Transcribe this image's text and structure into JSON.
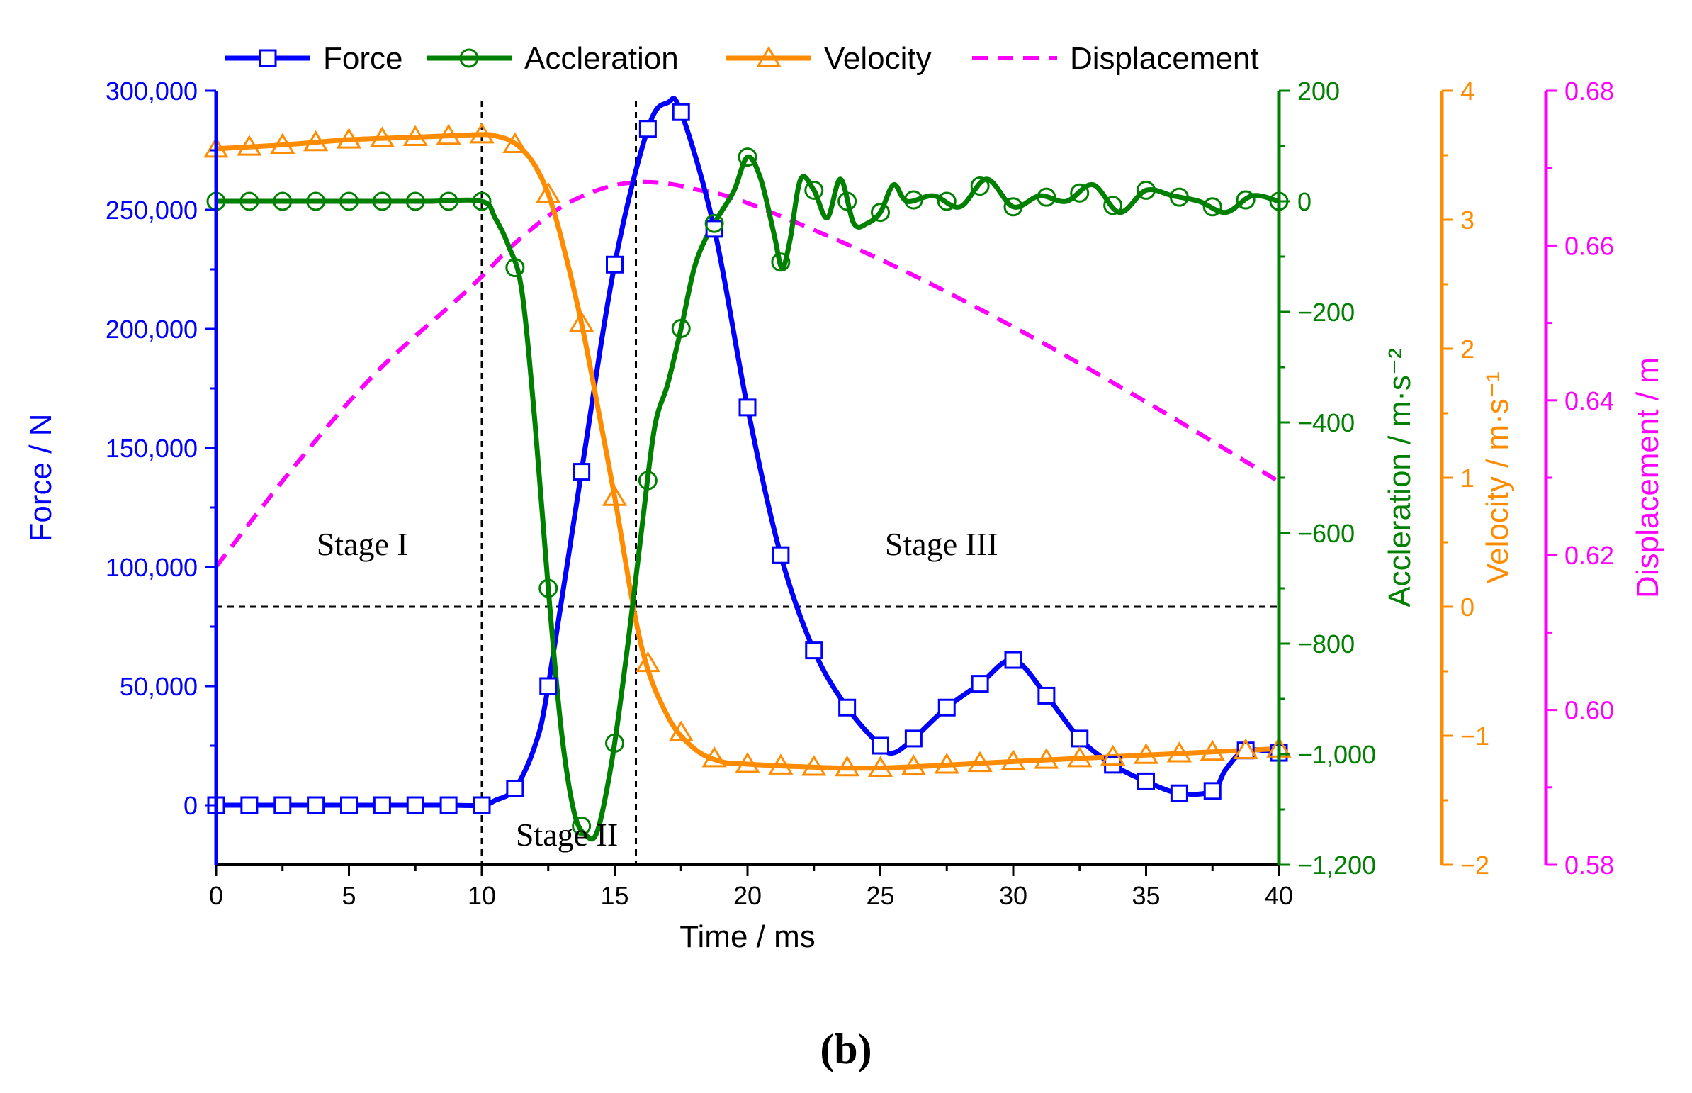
{
  "figure_label": "(b)",
  "colors": {
    "force": "#0000ff",
    "accel": "#008000",
    "velocity": "#ff8c00",
    "displacement": "#ff00ff",
    "axis": "#000000",
    "ref": "#000000"
  },
  "chart_data": {
    "type": "line",
    "title": "",
    "xlabel": "Time / ms",
    "xlim": [
      0,
      40
    ],
    "xticks": [
      0,
      5,
      10,
      15,
      20,
      25,
      30,
      35,
      40
    ],
    "stages": [
      {
        "label": "Stage I",
        "x": 5.5,
        "y_force": 105000
      },
      {
        "label": "Stage II",
        "x": 13.2,
        "y_force": -17000
      },
      {
        "label": "Stage III",
        "x": 27.3,
        "y_force": 105000
      }
    ],
    "reference_lines": {
      "vertical_ms": [
        10,
        15.8
      ],
      "horizontal_velocity": 0
    },
    "axes": [
      {
        "name": "Force",
        "label": "Force / N",
        "ylim": [
          -25000,
          300000
        ],
        "ticks": [
          0,
          50000,
          100000,
          150000,
          200000,
          250000,
          300000
        ],
        "tick_labels": [
          "0",
          "50,000",
          "100,000",
          "150,000",
          "200,000",
          "250,000",
          "300,000"
        ]
      },
      {
        "name": "Accleration",
        "label": "Accleration / m·s⁻²",
        "ylim": [
          -1200,
          200
        ],
        "ticks": [
          -1200,
          -1000,
          -800,
          -600,
          -400,
          -200,
          0,
          200
        ],
        "tick_labels": [
          "−1,200",
          "−1,000",
          "−800",
          "−600",
          "−400",
          "−200",
          "0",
          "200"
        ]
      },
      {
        "name": "Velocity",
        "label": "Velocity / m·s⁻¹",
        "ylim": [
          -2,
          4
        ],
        "ticks": [
          -2,
          -1,
          0,
          1,
          2,
          3,
          4
        ],
        "tick_labels": [
          "−2",
          "−1",
          "0",
          "1",
          "2",
          "3",
          "4"
        ]
      },
      {
        "name": "Displacement",
        "label": "Displacement / m",
        "ylim": [
          0.58,
          0.68
        ],
        "ticks": [
          0.58,
          0.6,
          0.62,
          0.64,
          0.66,
          0.68
        ],
        "tick_labels": [
          "0.58",
          "0.60",
          "0.62",
          "0.64",
          "0.66",
          "0.68"
        ]
      }
    ],
    "series": [
      {
        "name": "Force",
        "axis": 0,
        "marker": "square",
        "x": [
          0,
          1.25,
          2.5,
          3.75,
          5,
          6.25,
          7.5,
          8.75,
          10,
          10.5,
          11.25,
          12,
          12.5,
          13.75,
          15,
          16.25,
          17,
          17.5,
          18.75,
          20,
          21.25,
          22.5,
          23.75,
          25,
          25.5,
          26.25,
          27.5,
          28.75,
          30,
          31.25,
          32.5,
          33.75,
          35,
          36.25,
          37.5,
          38,
          38.75,
          40
        ],
        "values": [
          0,
          0,
          0,
          0,
          0,
          0,
          0,
          0,
          0,
          2000,
          7000,
          25000,
          50000,
          140000,
          227000,
          284000,
          295000,
          291000,
          242000,
          167000,
          105000,
          65000,
          41000,
          25000,
          22000,
          28000,
          41000,
          51000,
          61000,
          46000,
          28000,
          17000,
          10000,
          5000,
          6000,
          15000,
          23000,
          22000
        ],
        "marker_x": [
          0,
          1.25,
          2.5,
          3.75,
          5,
          6.25,
          7.5,
          8.75,
          10,
          11.25,
          12.5,
          13.75,
          15,
          16.25,
          17.5,
          18.75,
          20,
          21.25,
          22.5,
          23.75,
          25,
          26.25,
          27.5,
          28.75,
          30,
          31.25,
          32.5,
          33.75,
          35,
          36.25,
          37.5,
          38.75,
          40
        ]
      },
      {
        "name": "Accleration",
        "axis": 1,
        "marker": "circle",
        "x": [
          0,
          2,
          4,
          6,
          8,
          10,
          10.5,
          11,
          11.5,
          12,
          12.5,
          13,
          13.5,
          14,
          14.3,
          14.6,
          15,
          15.5,
          16,
          16.5,
          17,
          17.5,
          18,
          18.5,
          19,
          19.5,
          20,
          20.5,
          21,
          21.3,
          21.6,
          22,
          22.5,
          23,
          23.5,
          24,
          24.5,
          25,
          25.5,
          26,
          27,
          28,
          29,
          30,
          31,
          32,
          33,
          34,
          35,
          36,
          37,
          38,
          39,
          40
        ],
        "values": [
          0,
          0,
          0,
          0,
          0,
          0,
          -30,
          -80,
          -160,
          -400,
          -700,
          -960,
          -1110,
          -1150,
          -1145,
          -1090,
          -980,
          -800,
          -600,
          -410,
          -330,
          -230,
          -120,
          -60,
          -20,
          20,
          80,
          40,
          -60,
          -120,
          -70,
          40,
          20,
          -30,
          40,
          -40,
          -40,
          -20,
          30,
          0,
          10,
          -10,
          40,
          -10,
          10,
          0,
          30,
          -20,
          20,
          10,
          0,
          -20,
          10,
          0
        ],
        "marker_x": [
          0,
          1.25,
          2.5,
          3.75,
          5,
          6.25,
          7.5,
          8.75,
          10,
          11.25,
          12.5,
          13.75,
          15,
          16.25,
          17.5,
          18.75,
          20,
          21.25,
          22.5,
          23.75,
          25,
          26.25,
          27.5,
          28.75,
          30,
          31.25,
          32.5,
          33.75,
          35,
          36.25,
          37.5,
          38.75,
          40
        ]
      },
      {
        "name": "Velocity",
        "axis": 2,
        "marker": "triangle",
        "x": [
          0,
          2.5,
          5,
          7.5,
          10,
          10.5,
          11,
          11.5,
          12,
          12.5,
          13,
          13.75,
          14.5,
          15,
          16,
          17,
          18,
          19,
          20,
          22,
          25,
          30,
          35,
          40
        ],
        "values": [
          3.55,
          3.58,
          3.62,
          3.64,
          3.66,
          3.65,
          3.62,
          3.55,
          3.42,
          3.2,
          2.85,
          2.2,
          1.4,
          0.85,
          -0.3,
          -0.85,
          -1.1,
          -1.2,
          -1.22,
          -1.24,
          -1.25,
          -1.2,
          -1.15,
          -1.1
        ],
        "marker_x": [
          0,
          1.25,
          2.5,
          3.75,
          5,
          6.25,
          7.5,
          8.75,
          10,
          11.25,
          12.5,
          13.75,
          15,
          16.25,
          17.5,
          18.75,
          20,
          21.25,
          22.5,
          23.75,
          25,
          26.25,
          27.5,
          28.75,
          30,
          31.25,
          32.5,
          33.75,
          35,
          36.25,
          37.5,
          38.75,
          40
        ]
      },
      {
        "name": "Displacement",
        "axis": 3,
        "marker": "none",
        "dashed": true,
        "x": [
          0,
          3,
          6,
          9,
          10,
          11,
          12,
          13,
          14,
          15,
          16,
          17,
          18,
          20,
          25,
          30,
          35,
          40
        ],
        "values": [
          0.6185,
          0.6317,
          0.6435,
          0.6528,
          0.656,
          0.6595,
          0.6625,
          0.665,
          0.6667,
          0.6678,
          0.6682,
          0.668,
          0.6673,
          0.6655,
          0.6582,
          0.6495,
          0.6398,
          0.6295
        ],
        "marker_x": []
      }
    ]
  }
}
